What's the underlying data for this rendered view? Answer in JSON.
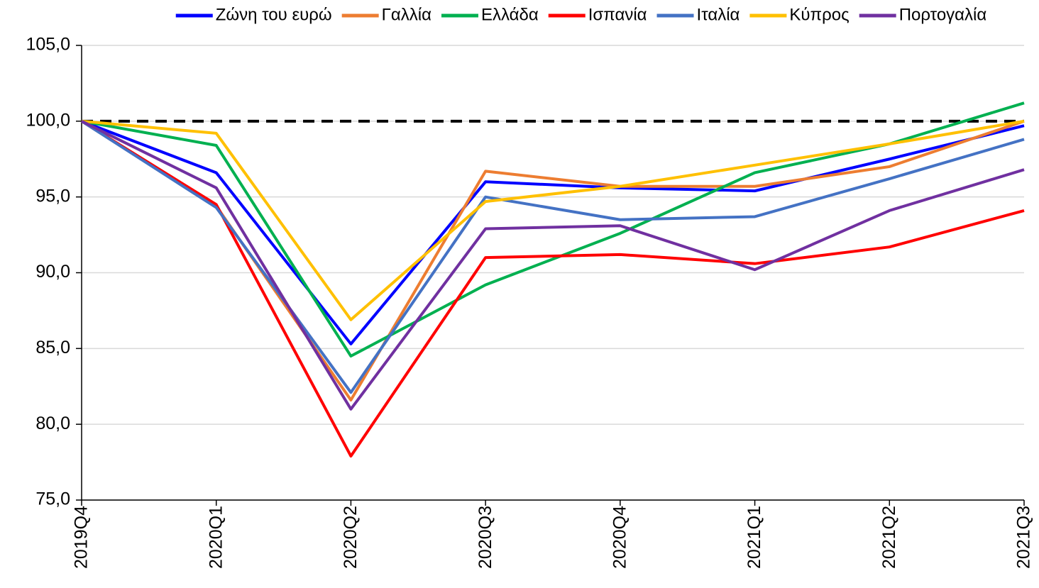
{
  "chart_data": {
    "type": "line",
    "categories": [
      "2019Q4",
      "2020Q1",
      "2020Q2",
      "2020Q3",
      "2020Q4",
      "2021Q1",
      "2021Q2",
      "2021Q3"
    ],
    "series": [
      {
        "name": "Ζώνη του ευρώ",
        "color": "#0000ff",
        "values": [
          100,
          96.6,
          85.3,
          96.0,
          95.6,
          95.4,
          97.5,
          99.7
        ]
      },
      {
        "name": "Γαλλία",
        "color": "#ed7d31",
        "values": [
          100,
          94.4,
          81.6,
          96.7,
          95.7,
          95.7,
          97.0,
          100.0
        ]
      },
      {
        "name": "Ελλάδα",
        "color": "#00b050",
        "values": [
          100,
          98.4,
          84.5,
          89.2,
          92.6,
          96.6,
          98.5,
          101.2
        ]
      },
      {
        "name": "Ισπανία",
        "color": "#ff0000",
        "values": [
          100,
          94.5,
          77.9,
          91.0,
          91.2,
          90.6,
          91.7,
          94.1
        ]
      },
      {
        "name": "Ιταλία",
        "color": "#4472c4",
        "values": [
          100,
          94.3,
          82.1,
          95.0,
          93.5,
          93.7,
          96.2,
          98.8
        ]
      },
      {
        "name": "Κύπρος",
        "color": "#ffc000",
        "values": [
          100,
          99.2,
          86.9,
          94.7,
          95.7,
          97.1,
          98.5,
          100.0
        ]
      },
      {
        "name": "Πορτογαλία",
        "color": "#7030a0",
        "values": [
          100,
          95.6,
          81.0,
          92.9,
          93.1,
          90.2,
          94.1,
          96.8
        ]
      }
    ],
    "reference_line": 100,
    "ylim": [
      75,
      105
    ],
    "yticks": [
      {
        "value": 75,
        "label": "75,0"
      },
      {
        "value": 80,
        "label": "80,0"
      },
      {
        "value": 85,
        "label": "85,0"
      },
      {
        "value": 90,
        "label": "90,0"
      },
      {
        "value": 95,
        "label": "95,0"
      },
      {
        "value": 100,
        "label": "100,0"
      },
      {
        "value": 105,
        "label": "105,0"
      }
    ],
    "grid": true,
    "legend": "top"
  }
}
